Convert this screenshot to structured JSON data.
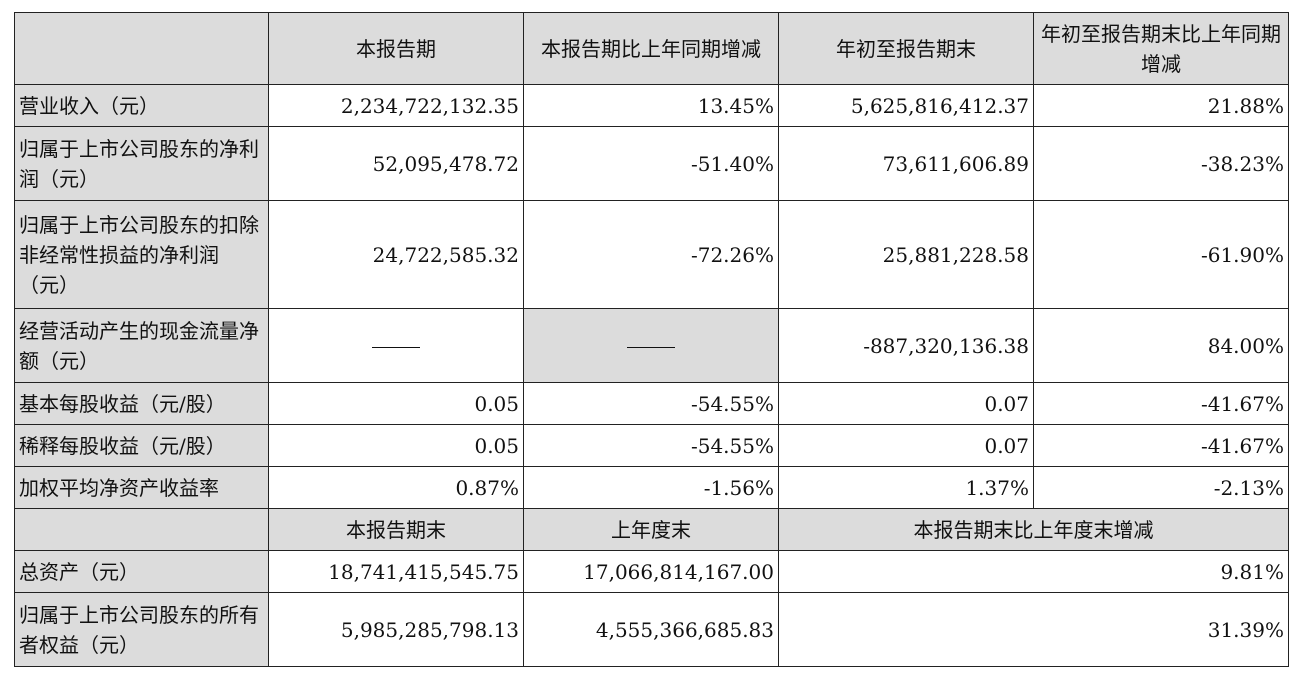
{
  "header": {
    "corner": "",
    "col1": "本报告期",
    "col2": "本报告期比上年同期增减",
    "col3": "年初至报告期末",
    "col4": "年初至报告期末比上年同期增减"
  },
  "rows": [
    {
      "label": "营业收入（元）",
      "v1": "2,234,722,132.35",
      "v2": "13.45%",
      "v3": "5,625,816,412.37",
      "v4": "21.88%"
    },
    {
      "label": "归属于上市公司股东的净利润（元）",
      "v1": "52,095,478.72",
      "v2": "-51.40%",
      "v3": "73,611,606.89",
      "v4": "-38.23%"
    },
    {
      "label": "归属于上市公司股东的扣除非经常性损益的净利润（元）",
      "v1": "24,722,585.32",
      "v2": "-72.26%",
      "v3": "25,881,228.58",
      "v4": "-61.90%"
    },
    {
      "label": "经营活动产生的现金流量净额（元）",
      "v1": "——",
      "v2": "——",
      "v3": "-887,320,136.38",
      "v4": "84.00%"
    },
    {
      "label": "基本每股收益（元/股）",
      "v1": "0.05",
      "v2": "-54.55%",
      "v3": "0.07",
      "v4": "-41.67%"
    },
    {
      "label": "稀释每股收益（元/股）",
      "v1": "0.05",
      "v2": "-54.55%",
      "v3": "0.07",
      "v4": "-41.67%"
    },
    {
      "label": "加权平均净资产收益率",
      "v1": "0.87%",
      "v2": "-1.56%",
      "v3": "1.37%",
      "v4": "-2.13%"
    }
  ],
  "header2": {
    "col1": "本报告期末",
    "col2": "上年度末",
    "col3": "本报告期末比上年度末增减"
  },
  "rows2": [
    {
      "label": "总资产（元）",
      "v1": "18,741,415,545.75",
      "v2": "17,066,814,167.00",
      "v3": "9.81%"
    },
    {
      "label": "归属于上市公司股东的所有者权益（元）",
      "v1": "5,985,285,798.13",
      "v2": "4,555,366,685.83",
      "v3": "31.39%"
    }
  ]
}
